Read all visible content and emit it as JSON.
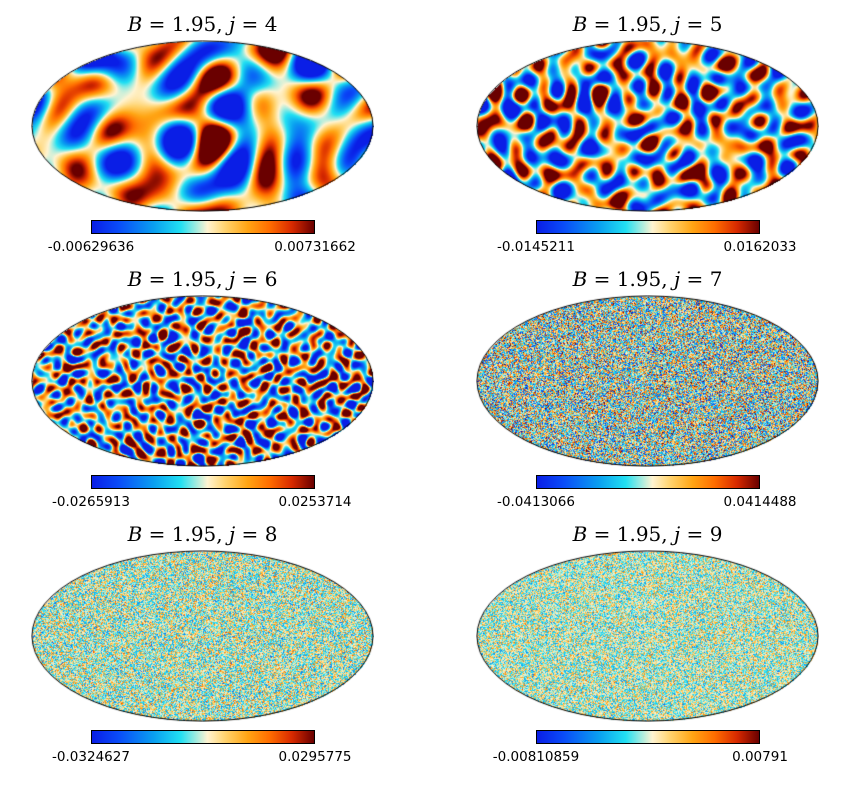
{
  "colors": {
    "background": "#ffffff",
    "outline": "#000000"
  },
  "chart_data": [
    {
      "type": "heatmap",
      "projection": "mollweide",
      "B": "1.95",
      "j": "4",
      "colorbar": {
        "min": "-0.00629636",
        "max": "0.00731662"
      }
    },
    {
      "type": "heatmap",
      "projection": "mollweide",
      "B": "1.95",
      "j": "5",
      "colorbar": {
        "min": "-0.0145211",
        "max": "0.0162033"
      }
    },
    {
      "type": "heatmap",
      "projection": "mollweide",
      "B": "1.95",
      "j": "6",
      "colorbar": {
        "min": "-0.0265913",
        "max": "0.0253714"
      }
    },
    {
      "type": "heatmap",
      "projection": "mollweide",
      "B": "1.95",
      "j": "7",
      "colorbar": {
        "min": "-0.0413066",
        "max": "0.0414488"
      }
    },
    {
      "type": "heatmap",
      "projection": "mollweide",
      "B": "1.95",
      "j": "8",
      "colorbar": {
        "min": "-0.0324627",
        "max": "0.0295775"
      }
    },
    {
      "type": "heatmap",
      "projection": "mollweide",
      "B": "1.95",
      "j": "9",
      "colorbar": {
        "min": "-0.00810859",
        "max": "0.00791"
      }
    }
  ]
}
